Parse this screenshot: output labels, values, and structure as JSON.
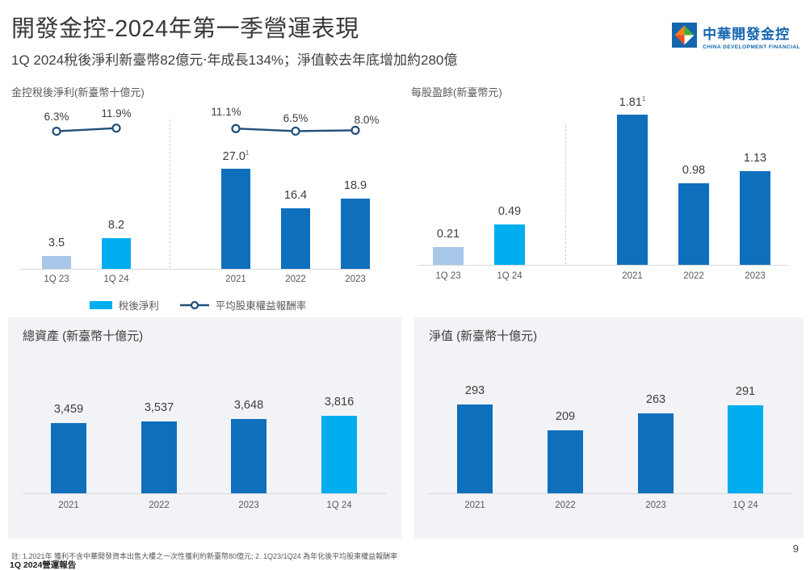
{
  "header": {
    "title": "開發金控-2024年第一季營運表現",
    "subtitle": "1Q 2024稅後淨利新臺幣82億元‧年成長134%；淨值較去年底增加約280億"
  },
  "logo": {
    "name_zh": "中華開發金控",
    "name_en": "CHINA DEVELOPMENT FINANCIAL"
  },
  "colors": {
    "dark_blue": "#0E6FBD",
    "cyan": "#00AEEF",
    "light_blue": "#A9C7E8",
    "line_navy": "#1F4E79",
    "card_bg": "#F1F3F6"
  },
  "legend": {
    "bar_label": "稅後淨利",
    "line_label": "平均股東權益報酬率"
  },
  "chart_data": [
    {
      "id": "net_profit",
      "type": "bar",
      "title": "金控稅後淨利(新臺幣十億元)",
      "categories": [
        "1Q 23",
        "1Q 24",
        "2021",
        "2022",
        "2023"
      ],
      "values": [
        3.5,
        8.2,
        27.0,
        16.4,
        18.9
      ],
      "labels": [
        "3.5",
        "8.2",
        "27.0",
        "16.4",
        "18.9"
      ],
      "footnote_index": 2,
      "footnote_mark": "1",
      "bar_colors": [
        "light_blue",
        "cyan",
        "dark_blue",
        "dark_blue",
        "dark_blue"
      ],
      "line_series": {
        "name": "平均股東權益報酬率",
        "values": [
          6.3,
          11.9,
          11.1,
          6.5,
          8.0
        ],
        "labels": [
          "6.3%",
          "11.9%",
          "11.1%",
          "6.5%",
          "8.0%"
        ]
      },
      "divider_between": [
        "1Q 24",
        "2021"
      ]
    },
    {
      "id": "eps",
      "type": "bar",
      "title": "每股盈餘(新臺幣元)",
      "categories": [
        "1Q 23",
        "1Q 24",
        "2021",
        "2022",
        "2023"
      ],
      "values": [
        0.21,
        0.49,
        1.81,
        0.98,
        1.13
      ],
      "labels": [
        "0.21",
        "0.49",
        "1.81",
        "0.98",
        "1.13"
      ],
      "footnote_index": 2,
      "footnote_mark": "1",
      "bar_colors": [
        "light_blue",
        "cyan",
        "dark_blue",
        "dark_blue",
        "dark_blue"
      ],
      "divider_between": [
        "1Q 24",
        "2021"
      ]
    },
    {
      "id": "total_assets",
      "type": "bar",
      "title": "總資產 (新臺幣十億元)",
      "categories": [
        "2021",
        "2022",
        "2023",
        "1Q 24"
      ],
      "values": [
        3459,
        3537,
        3648,
        3816
      ],
      "labels": [
        "3,459",
        "3,537",
        "3,648",
        "3,816"
      ],
      "bar_colors": [
        "dark_blue",
        "dark_blue",
        "dark_blue",
        "cyan"
      ]
    },
    {
      "id": "net_worth",
      "type": "bar",
      "title": "淨值 (新臺幣十億元)",
      "categories": [
        "2021",
        "2022",
        "2023",
        "1Q 24"
      ],
      "values": [
        293,
        209,
        263,
        291
      ],
      "labels": [
        "293",
        "209",
        "263",
        "291"
      ],
      "bar_colors": [
        "dark_blue",
        "dark_blue",
        "dark_blue",
        "cyan"
      ]
    }
  ],
  "footer": {
    "note": "註: 1.2021年 獲利不含中華開發資本出售大樓之一次性獲利約新臺幣80億元; 2. 1Q23/1Q24 為年化後平均股東權益報酬率",
    "report_label": "1Q 2024營運報告",
    "page_number": "9"
  }
}
